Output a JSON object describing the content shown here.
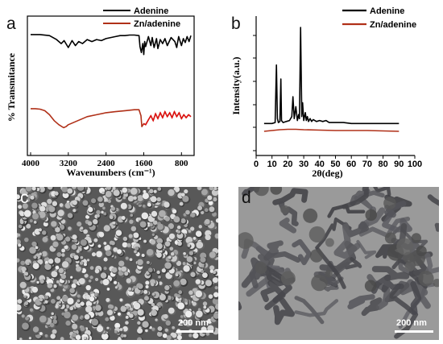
{
  "panels": {
    "a": {
      "label": "a"
    },
    "b": {
      "label": "b"
    },
    "c": {
      "label": "c",
      "scale_text": "200 nm"
    },
    "d": {
      "label": "d",
      "scale_text": "200 nm"
    }
  },
  "colors": {
    "adenine": "#000000",
    "zn_adenine": "#b03018",
    "zn_adenine_bright": "#e01010",
    "sem_bg": "#585858",
    "tem_bg": "#9a9a9a"
  },
  "chart_data": [
    {
      "type": "line",
      "panel": "a",
      "xlabel": "Wavenumbers (cm⁻¹)",
      "ylabel": "% Transmitance",
      "xlim": [
        4000,
        600
      ],
      "x_reversed": true,
      "xticks": [
        "4000",
        "3200",
        "2400",
        "1600",
        "800"
      ],
      "legend": [
        "Adenine",
        "Zn/adenine"
      ],
      "legend_position": "top-right",
      "series": [
        {
          "name": "Adenine",
          "x": [
            4000,
            3800,
            3600,
            3450,
            3350,
            3290,
            3200,
            3120,
            3050,
            2980,
            2900,
            2800,
            2700,
            2600,
            2500,
            2400,
            2300,
            2200,
            2100,
            2000,
            1900,
            1800,
            1700,
            1680,
            1650,
            1620,
            1600,
            1580,
            1560,
            1500,
            1450,
            1420,
            1380,
            1330,
            1300,
            1250,
            1200,
            1150,
            1100,
            1020,
            940,
            900,
            860,
            800,
            760,
            720,
            680,
            640,
            600
          ],
          "y": [
            84,
            84,
            82,
            74,
            66,
            72,
            58,
            72,
            62,
            70,
            66,
            74,
            70,
            74,
            72,
            76,
            78,
            80,
            82,
            82,
            83,
            83,
            82,
            60,
            48,
            66,
            44,
            70,
            60,
            80,
            62,
            78,
            58,
            76,
            56,
            74,
            66,
            76,
            62,
            78,
            70,
            58,
            80,
            62,
            76,
            68,
            80,
            70,
            82
          ]
        },
        {
          "name": "Zn/adenine",
          "x": [
            4000,
            3900,
            3800,
            3700,
            3600,
            3500,
            3400,
            3300,
            3250,
            3200,
            3100,
            3000,
            2900,
            2800,
            2600,
            2400,
            2200,
            2000,
            1800,
            1700,
            1660,
            1640,
            1600,
            1560,
            1500,
            1450,
            1400,
            1350,
            1300,
            1250,
            1200,
            1150,
            1100,
            1050,
            1000,
            950,
            900,
            850,
            800,
            750,
            700,
            650,
            600
          ],
          "y": [
            34,
            34,
            33,
            30,
            22,
            10,
            2,
            -4,
            -2,
            2,
            6,
            10,
            14,
            18,
            22,
            26,
            28,
            30,
            32,
            32,
            20,
            -2,
            4,
            2,
            12,
            20,
            10,
            24,
            14,
            26,
            16,
            28,
            18,
            26,
            16,
            28,
            18,
            26,
            14,
            22,
            16,
            22,
            18
          ]
        }
      ]
    },
    {
      "type": "line",
      "panel": "b",
      "xlabel": "2θ(deg)",
      "ylabel": "Intensity(a.u.)",
      "xlim": [
        0,
        100
      ],
      "xticks": [
        0,
        10,
        20,
        30,
        40,
        50,
        60,
        70,
        80,
        90,
        100
      ],
      "legend": [
        "Adenine",
        "Zn/adenine"
      ],
      "legend_position": "top-right",
      "series": [
        {
          "name": "Adenine",
          "x": [
            5,
            10,
            12,
            12.8,
            13.4,
            14,
            15,
            15.6,
            16,
            17,
            19,
            21,
            22.5,
            23.2,
            24,
            25,
            26,
            26.8,
            27.3,
            28,
            28.8,
            29.3,
            30,
            31,
            31.6,
            32.3,
            33,
            34,
            35,
            36,
            38,
            40,
            42,
            44,
            46,
            50,
            55,
            60,
            70,
            80,
            90
          ],
          "y": [
            3,
            3,
            4,
            62,
            8,
            4,
            5,
            48,
            6,
            4,
            5,
            6,
            10,
            30,
            8,
            20,
            6,
            12,
            8,
            100,
            10,
            24,
            6,
            14,
            6,
            10,
            5,
            8,
            5,
            7,
            5,
            6,
            5,
            6,
            4,
            4,
            4,
            3,
            3,
            3,
            3
          ]
        },
        {
          "name": "Zn/adenine",
          "x": [
            5,
            10,
            15,
            20,
            25,
            30,
            40,
            50,
            60,
            70,
            80,
            90
          ],
          "y": [
            -1,
            0,
            1,
            1.5,
            1.5,
            1,
            0.5,
            0,
            0,
            0,
            -0.5,
            -1
          ]
        }
      ]
    }
  ]
}
